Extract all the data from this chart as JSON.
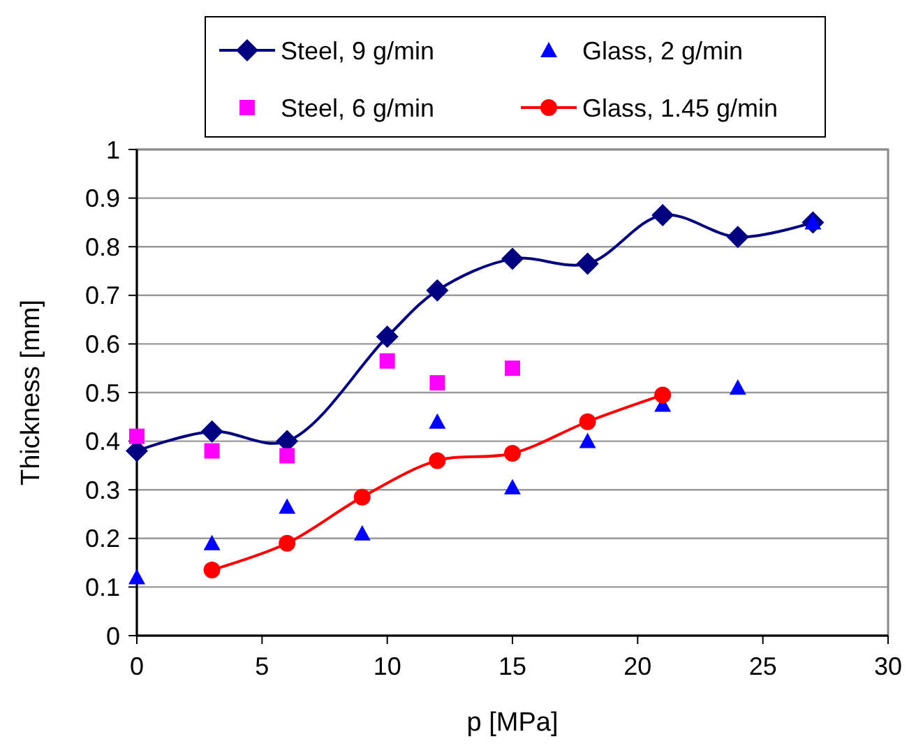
{
  "chart_data": {
    "type": "scatter",
    "xlabel": "p [MPa]",
    "ylabel": "Thickness [mm]",
    "xlim": [
      0,
      30
    ],
    "xticks": [
      0,
      5,
      10,
      15,
      20,
      25,
      30
    ],
    "ylim": [
      0,
      1
    ],
    "yticks": [
      0,
      0.1,
      0.2,
      0.3,
      0.4,
      0.5,
      0.6,
      0.7,
      0.8,
      0.9,
      1
    ],
    "grid": "y",
    "legend": "top",
    "series": [
      {
        "name": "Steel, 9 g/min",
        "type": "line",
        "marker": "diamond",
        "color": "#000080",
        "x": [
          0,
          3,
          6,
          10,
          12,
          15,
          18,
          21,
          24,
          27
        ],
        "values": [
          0.38,
          0.42,
          0.4,
          0.615,
          0.71,
          0.775,
          0.765,
          0.865,
          0.82,
          0.85
        ]
      },
      {
        "name": "Glass, 2 g/min",
        "marker": "triangle",
        "color": "#0000ff",
        "x": [
          0,
          3,
          6,
          9,
          12,
          15,
          18,
          21,
          24,
          27
        ],
        "values": [
          0.12,
          0.19,
          0.265,
          0.21,
          0.44,
          0.305,
          0.4,
          0.475,
          0.51,
          0.85
        ]
      },
      {
        "name": "Steel, 6 g/min",
        "marker": "square",
        "color": "#ff00ff",
        "x": [
          0,
          3,
          6,
          10,
          12,
          15
        ],
        "values": [
          0.41,
          0.38,
          0.37,
          0.565,
          0.52,
          0.55
        ]
      },
      {
        "name": "Glass, 1.45 g/min",
        "type": "line",
        "marker": "circle",
        "color": "#ff0000",
        "x": [
          3,
          6,
          9,
          12,
          15,
          18,
          21
        ],
        "values": [
          0.135,
          0.19,
          0.285,
          0.36,
          0.375,
          0.44,
          0.495
        ]
      }
    ]
  }
}
